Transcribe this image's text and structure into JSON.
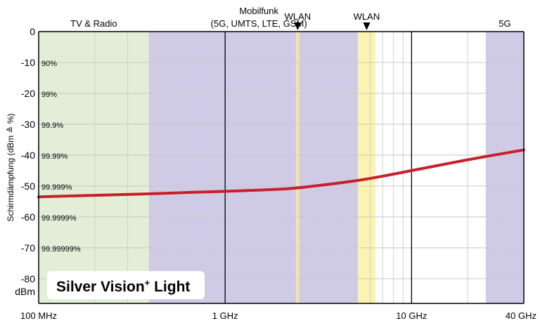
{
  "chart_data": {
    "type": "line",
    "ylabel": "Schirmdämpfung (dBm ≙ %)",
    "y_unit_label": "dBm",
    "xscale": "log",
    "x_range_hz": [
      100000000,
      40000000000
    ],
    "ylim": [
      -88,
      0
    ],
    "grid": true,
    "y_ticks": [
      {
        "value": 0,
        "label": "0"
      },
      {
        "value": -10,
        "label": "-10"
      },
      {
        "value": -20,
        "label": "-20"
      },
      {
        "value": -30,
        "label": "-30"
      },
      {
        "value": -40,
        "label": "-40"
      },
      {
        "value": -50,
        "label": "-50"
      },
      {
        "value": -60,
        "label": "-60"
      },
      {
        "value": -70,
        "label": "-70"
      },
      {
        "value": -80,
        "label": "-80"
      }
    ],
    "percent_labels": [
      {
        "value": -10,
        "label": "90%"
      },
      {
        "value": -20,
        "label": "99%"
      },
      {
        "value": -30,
        "label": "99.9%"
      },
      {
        "value": -40,
        "label": "99.99%"
      },
      {
        "value": -50,
        "label": "99.999%"
      },
      {
        "value": -60,
        "label": "99.9999%"
      },
      {
        "value": -70,
        "label": "99.99999%"
      }
    ],
    "x_ticks": [
      {
        "hz": 100000000,
        "label": "100 MHz"
      },
      {
        "hz": 1000000000,
        "label": "1 GHz"
      },
      {
        "hz": 10000000000,
        "label": "10 GHz"
      },
      {
        "hz": 40000000000,
        "label": "40 GHz"
      }
    ],
    "bands": [
      {
        "label": "TV & Radio",
        "label2": "",
        "from_hz": 100000000,
        "to_hz": 390000000,
        "color": "#e3eed8",
        "marker": false
      },
      {
        "label": "Mobilfunk",
        "label2": "(5G, UMTS, LTE, GSM)",
        "from_hz": 390000000,
        "to_hz": 5900000000,
        "color": "#cfcbe6",
        "marker": false
      },
      {
        "label": "WLAN",
        "label2": "",
        "from_hz": 2400000000,
        "to_hz": 2500000000,
        "color": "#f3e6a6",
        "marker": true
      },
      {
        "label": "WLAN",
        "label2": "",
        "from_hz": 5150000000,
        "to_hz": 6400000000,
        "color": "#fbf3b2",
        "marker": true
      },
      {
        "label": "5G",
        "label2": "",
        "from_hz": 25000000000,
        "to_hz": 40000000000,
        "color": "#cfcbe6",
        "marker": false
      }
    ],
    "series": [
      {
        "color": "#c8202a",
        "x_hz": [
          100000000,
          200000000,
          400000000,
          700000000,
          1000000000,
          2000000000,
          3000000000,
          5000000000,
          7000000000,
          10000000000,
          20000000000,
          40000000000
        ],
        "y": [
          -53.5,
          -53,
          -52.5,
          -52,
          -51.7,
          -51,
          -50,
          -48.3,
          -46.8,
          -45,
          -41.5,
          -38.3
        ]
      }
    ]
  },
  "product_label": {
    "name": "Silver Vision",
    "superscript": "+",
    "suffix": " Light"
  }
}
